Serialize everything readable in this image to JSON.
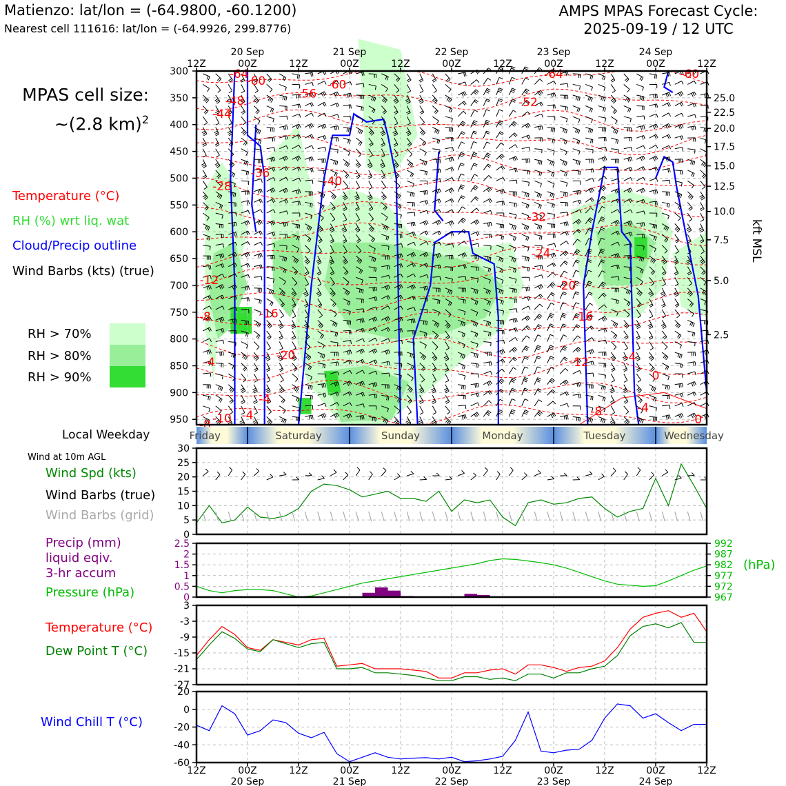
{
  "header": {
    "location": "Matienzo: lat/lon = (-64.9800, -60.1200)",
    "nearest": "Nearest cell 111616: lat/lon = (-64.9926, 299.8776)",
    "cycle_line1": "AMPS MPAS Forecast Cycle:",
    "cycle_line2": "2025-09-19 / 12 UTC"
  },
  "cell_size": {
    "line1": "MPAS cell size:",
    "line2": "~(2.8 km)",
    "exp": "2"
  },
  "legend": {
    "temperature": "Temperature (°C)",
    "rh": "RH (%) wrt liq. wat",
    "cloud": "Cloud/Precip outline",
    "barbs": "Wind Barbs (kts) (true)",
    "rh70": "RH > 70%",
    "rh80": "RH > 80%",
    "rh90": "RH > 90%"
  },
  "colors": {
    "temp": "#ff0000",
    "rh_label": "#33dd33",
    "cloud": "#0000ff",
    "rh70": "#ccffcc",
    "rh80": "#99ee99",
    "rh90": "#33dd33",
    "wind": "#008800",
    "precip": "#800080",
    "pressure": "#00bb00",
    "dew": "#008000",
    "chill": "#0000ff",
    "grid_barb": "#aaaaaa"
  },
  "side_labels": {
    "local_weekday": "Local Weekday",
    "wind10": "Wind at 10m AGL",
    "wind_spd": "Wind Spd (kts)",
    "wind_barbs": "Wind Barbs (true)",
    "wind_barbs_grid": "Wind Barbs (grid)",
    "precip1": "Precip (mm)",
    "precip2": "liquid eqiv.",
    "precip3": "3-hr accum",
    "pressure": "Pressure (hPa)",
    "temperature": "Temperature (°C)",
    "dewpoint": "Dew Point T (°C)",
    "wind_chill": "Wind Chill T (°C)",
    "hpa_unit": "(hPa)",
    "kft": "kft MSL"
  },
  "time_axis": {
    "hours": [
      0,
      12,
      24,
      36,
      48,
      60,
      72,
      84,
      96,
      108,
      120
    ],
    "tick_labels": [
      "12Z",
      "00Z",
      "12Z",
      "00Z",
      "12Z",
      "00Z",
      "12Z",
      "00Z",
      "12Z",
      "00Z",
      "12Z"
    ],
    "date_labels": [
      "",
      "20 Sep",
      "",
      "21 Sep",
      "",
      "22 Sep",
      "",
      "23 Sep",
      "",
      "24 Sep",
      ""
    ],
    "weekdays": [
      "Friday",
      "Saturday",
      "Sunday",
      "Monday",
      "Tuesday",
      "Wednesday"
    ]
  },
  "chart_data": [
    {
      "type": "heatmap",
      "title": "",
      "y_axis": {
        "label": "",
        "ticks": [
          300,
          350,
          400,
          450,
          500,
          550,
          600,
          650,
          700,
          750,
          800,
          850,
          900,
          950
        ],
        "ylim": [
          300,
          960
        ]
      },
      "y2_axis": {
        "label": "kft MSL",
        "ticks": [
          25.0,
          22.5,
          20.0,
          17.5,
          15.0,
          12.5,
          10.0,
          7.5,
          5.0,
          2.5
        ],
        "tick_text": [
          "25.0",
          "22.5",
          "20.0",
          "17.5",
          "15.0",
          "12.5",
          "10.0",
          "7.5",
          "5.0",
          "2.5"
        ],
        "pressure_at": [
          350,
          377,
          407,
          441,
          477,
          515,
          562,
          615,
          691,
          792
        ]
      },
      "x_hours": [
        0,
        120
      ],
      "temp_contour_labels": [
        {
          "t": 10,
          "p": 305,
          "v": "-64"
        },
        {
          "t": 14,
          "p": 318,
          "v": "-60"
        },
        {
          "t": 33,
          "p": 325,
          "v": "-60"
        },
        {
          "t": 26,
          "p": 342,
          "v": "-56"
        },
        {
          "t": 84,
          "p": 305,
          "v": "-64"
        },
        {
          "t": 116,
          "p": 305,
          "v": "-60"
        },
        {
          "t": 9,
          "p": 355,
          "v": "-48"
        },
        {
          "t": 6,
          "p": 380,
          "v": "-44"
        },
        {
          "t": 78,
          "p": 358,
          "v": "-52"
        },
        {
          "t": 15,
          "p": 490,
          "v": "-36"
        },
        {
          "t": 32,
          "p": 505,
          "v": "-40"
        },
        {
          "t": 6,
          "p": 515,
          "v": "-28"
        },
        {
          "t": 80,
          "p": 572,
          "v": "-32"
        },
        {
          "t": 81,
          "p": 640,
          "v": "-24"
        },
        {
          "t": 87,
          "p": 700,
          "v": "-20"
        },
        {
          "t": 3,
          "p": 690,
          "v": "-12"
        },
        {
          "t": 17,
          "p": 752,
          "v": "-16"
        },
        {
          "t": 91,
          "p": 758,
          "v": "-16"
        },
        {
          "t": 2,
          "p": 758,
          "v": "-8"
        },
        {
          "t": 21,
          "p": 830,
          "v": "-20"
        },
        {
          "t": 90,
          "p": 843,
          "v": "-12"
        },
        {
          "t": 102,
          "p": 833,
          "v": "-4"
        },
        {
          "t": 3,
          "p": 843,
          "v": "-4"
        },
        {
          "t": 16,
          "p": 912,
          "v": "-4"
        },
        {
          "t": 6,
          "p": 948,
          "v": "-10"
        },
        {
          "t": 2,
          "p": 960,
          "v": "-8"
        },
        {
          "t": 94,
          "p": 935,
          "v": "-8"
        },
        {
          "t": 108,
          "p": 868,
          "v": "0"
        },
        {
          "t": 105,
          "p": 928,
          "v": "-4"
        },
        {
          "t": 118,
          "p": 950,
          "v": "0"
        },
        {
          "t": 12,
          "p": 942,
          "v": "-4"
        }
      ]
    },
    {
      "type": "line",
      "title": "",
      "ylabel": "Wind Spd (kts)",
      "ylim": [
        0,
        30
      ],
      "yticks": [
        0,
        5,
        10,
        15,
        20,
        25,
        30
      ],
      "x": [
        0,
        3,
        6,
        9,
        12,
        15,
        18,
        21,
        24,
        27,
        30,
        33,
        36,
        39,
        42,
        45,
        48,
        51,
        54,
        57,
        60,
        63,
        66,
        69,
        72,
        75,
        78,
        81,
        84,
        87,
        90,
        93,
        96,
        99,
        102,
        105,
        108,
        111,
        114,
        117,
        120
      ],
      "series": [
        {
          "name": "Wind Spd (kts)",
          "values": [
            4,
            10,
            4,
            5,
            9.5,
            6,
            5.5,
            6.5,
            9,
            15,
            17.5,
            17,
            15.5,
            13,
            14,
            15,
            12.5,
            12.5,
            11.5,
            15,
            8,
            12,
            11,
            12,
            6,
            3,
            11,
            12,
            10.5,
            11,
            12.5,
            13,
            9,
            6,
            8,
            9,
            19.5,
            10,
            24.5,
            17,
            9
          ]
        }
      ]
    },
    {
      "type": "bar",
      "title": "",
      "ylabel": "Precip (mm)",
      "ylim": [
        0,
        2.5
      ],
      "yticks": [
        0,
        0.5,
        1.0,
        1.5,
        2.0,
        2.5
      ],
      "x_hours_start": [
        39,
        42,
        45,
        48,
        63,
        66
      ],
      "values": [
        0.2,
        0.45,
        0.3,
        0.05,
        0.15,
        0.1
      ],
      "y2": {
        "label": "(hPa)",
        "ylim": [
          967,
          992
        ],
        "yticks": [
          967,
          972,
          977,
          982,
          987,
          992
        ],
        "x": [
          0,
          3,
          6,
          9,
          12,
          15,
          18,
          21,
          24,
          27,
          30,
          33,
          36,
          39,
          42,
          45,
          48,
          51,
          54,
          57,
          60,
          63,
          66,
          69,
          72,
          75,
          78,
          81,
          84,
          87,
          90,
          93,
          96,
          99,
          102,
          105,
          108,
          111,
          114,
          117,
          120
        ],
        "series": [
          {
            "name": "Pressure (hPa)",
            "values": [
              972,
              970,
              969,
              970,
              970.5,
              970.5,
              970,
              968.5,
              967,
              967.5,
              969,
              970.5,
              972,
              973.5,
              974.5,
              975.5,
              976.5,
              977.5,
              978.5,
              979.5,
              980.5,
              981.5,
              982.5,
              984,
              984.8,
              984.5,
              983.8,
              983,
              982,
              980.5,
              978.5,
              976.5,
              974.5,
              973,
              972.5,
              972,
              972.3,
              974.5,
              977,
              979.5,
              981.5
            ]
          }
        ]
      }
    },
    {
      "type": "line",
      "title": "",
      "ylabel": "Temperature (°C)",
      "ylim": [
        -27,
        3
      ],
      "yticks": [
        -27,
        -21,
        -15,
        -9,
        -3,
        3
      ],
      "x": [
        0,
        3,
        6,
        9,
        12,
        15,
        18,
        21,
        24,
        27,
        30,
        33,
        36,
        39,
        42,
        45,
        48,
        51,
        54,
        57,
        60,
        63,
        66,
        69,
        72,
        75,
        78,
        81,
        84,
        87,
        90,
        93,
        96,
        99,
        102,
        105,
        108,
        111,
        114,
        117,
        120
      ],
      "series": [
        {
          "name": "Temperature (°C)",
          "values": [
            -16,
            -10,
            -5,
            -8,
            -13,
            -14,
            -10,
            -11,
            -12,
            -10,
            -9.5,
            -20,
            -19.5,
            -19,
            -21,
            -21,
            -21,
            -21.5,
            -22,
            -24.5,
            -24.5,
            -22.5,
            -22.5,
            -21.5,
            -21,
            -23,
            -19.5,
            -19.5,
            -20.5,
            -22,
            -20.5,
            -20,
            -18,
            -13,
            -6,
            -1.5,
            0,
            1,
            -1.5,
            0,
            -7
          ]
        },
        {
          "name": "Dew Point T (°C)",
          "values": [
            -17.5,
            -12,
            -7,
            -9.5,
            -13.5,
            -14.5,
            -10,
            -11.5,
            -13,
            -11.5,
            -11,
            -21,
            -21,
            -20.5,
            -22.5,
            -22.5,
            -23,
            -23.5,
            -24.5,
            -25.5,
            -25.5,
            -24,
            -24,
            -25,
            -24.5,
            -25.5,
            -23,
            -23,
            -24.5,
            -22.5,
            -22.5,
            -21,
            -20,
            -16,
            -8.5,
            -5,
            -4,
            -5.5,
            -3.5,
            -11,
            -11
          ]
        }
      ]
    },
    {
      "type": "line",
      "title": "",
      "ylabel": "Wind Chill T (°C)",
      "ylim": [
        -60,
        20
      ],
      "yticks": [
        -60,
        -40,
        -20,
        0,
        20
      ],
      "x": [
        0,
        3,
        6,
        9,
        12,
        15,
        18,
        21,
        24,
        27,
        30,
        33,
        36,
        39,
        42,
        45,
        48,
        51,
        54,
        57,
        60,
        63,
        66,
        69,
        72,
        75,
        78,
        81,
        84,
        87,
        90,
        93,
        96,
        99,
        102,
        105,
        108,
        111,
        114,
        117,
        120
      ],
      "series": [
        {
          "name": "Wind Chill T (°C)",
          "values": [
            -18,
            -24,
            4,
            -5,
            -29,
            -24,
            -12,
            -15,
            -27,
            -32,
            -26,
            -50,
            -59,
            -54,
            -49,
            -54,
            -56,
            -55,
            -54.5,
            -56,
            -54,
            -59,
            -58,
            -56,
            -53,
            -35,
            -3,
            -47,
            -49,
            -46,
            -45,
            -35,
            -10,
            6,
            4,
            -10,
            -5,
            -15,
            -24,
            -17,
            -17
          ]
        }
      ]
    }
  ]
}
